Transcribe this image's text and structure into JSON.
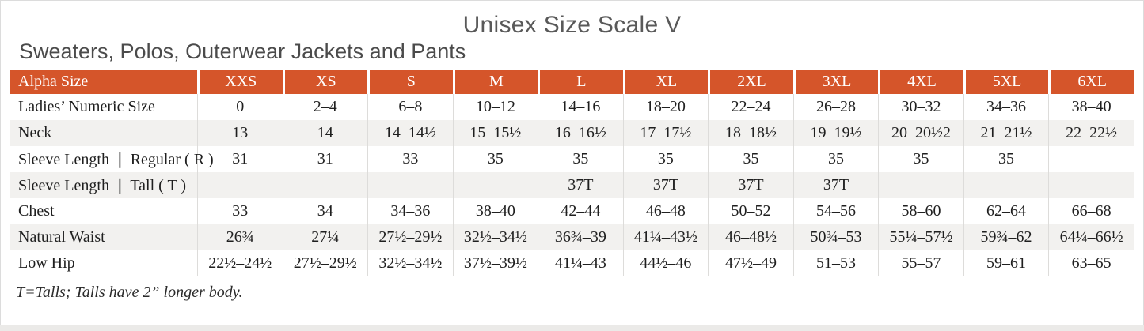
{
  "page": {
    "title": "Unisex Size Scale V",
    "subtitle": "Sweaters, Polos, Outerwear Jackets and Pants",
    "footnote": "T=Talls; Talls have 2” longer body."
  },
  "colors": {
    "header_bg": "#d5552a",
    "header_text": "#ffffff",
    "alt_row_bg": "#f2f1ef",
    "body_text": "#1f1f1f",
    "title_text": "#595959"
  },
  "table": {
    "header": [
      "Alpha Size",
      "XXS",
      "XS",
      "S",
      "M",
      "L",
      "XL",
      "2XL",
      "3XL",
      "4XL",
      "5XL",
      "6XL"
    ],
    "rows": [
      {
        "label": "Ladies’ Numeric Size",
        "values": [
          "0",
          "2–4",
          "6–8",
          "10–12",
          "14–16",
          "18–20",
          "22–24",
          "26–28",
          "30–32",
          "34–36",
          "38–40"
        ]
      },
      {
        "label": "Neck",
        "values": [
          "13",
          "14",
          "14–14½",
          "15–15½",
          "16–16½",
          "17–17½",
          "18–18½",
          "19–19½",
          "20–20½2",
          "21–21½",
          "22–22½"
        ]
      },
      {
        "label": "Sleeve Length ❘ Regular ( R )",
        "values": [
          "31",
          "31",
          "33",
          "35",
          "35",
          "35",
          "35",
          "35",
          "35",
          "35",
          ""
        ]
      },
      {
        "label": "Sleeve Length ❘ Tall ( T )",
        "values": [
          "",
          "",
          "",
          "",
          "37T",
          "37T",
          "37T",
          "37T",
          "",
          "",
          ""
        ]
      },
      {
        "label": "Chest",
        "values": [
          "33",
          "34",
          "34–36",
          "38–40",
          "42–44",
          "46–48",
          "50–52",
          "54–56",
          "58–60",
          "62–64",
          "66–68"
        ]
      },
      {
        "label": "Natural Waist",
        "values": [
          "26¾",
          "27¼",
          "27½–29½",
          "32½–34½",
          "36¾–39",
          "41¼–43½",
          "46–48½",
          "50¾–53",
          "55¼–57½",
          "59¾–62",
          "64¼–66½"
        ]
      },
      {
        "label": "Low Hip",
        "values": [
          "22½–24½",
          "27½–29½",
          "32½–34½",
          "37½–39½",
          "41¼–43",
          "44½–46",
          "47½–49",
          "51–53",
          "55–57",
          "59–61",
          "63–65"
        ]
      }
    ]
  }
}
